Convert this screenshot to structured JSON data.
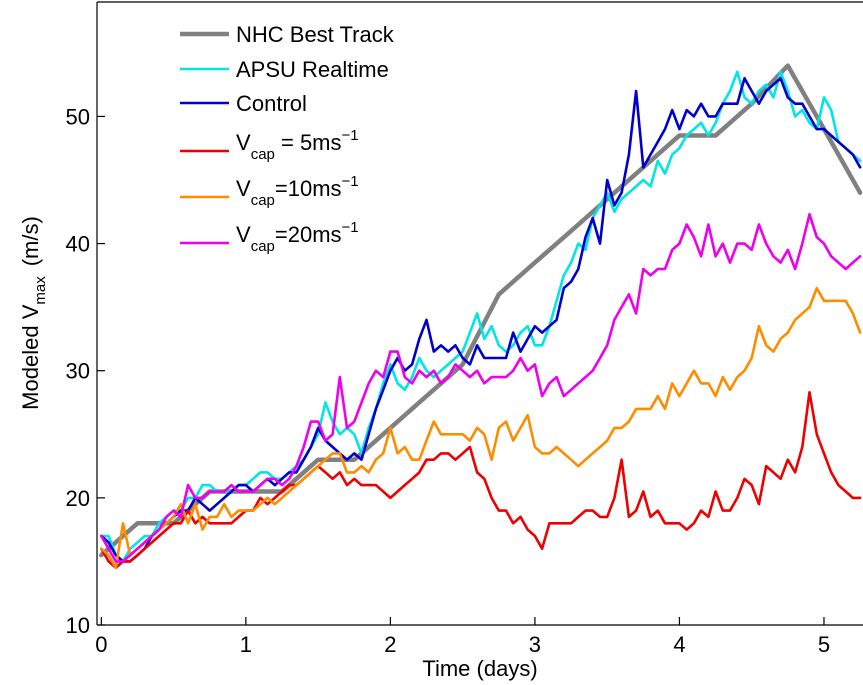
{
  "chart_data": {
    "type": "line",
    "title": "",
    "xlabel": "Time (days)",
    "ylabel": {
      "main": "Modeled V",
      "sub": "max",
      "unit": "(m/s)"
    },
    "xlim": [
      -0.03,
      5.27
    ],
    "ylim": [
      10,
      59
    ],
    "xticks": [
      0,
      1,
      2,
      3,
      4,
      5
    ],
    "xtick_labels": [
      "0",
      "1",
      "2",
      "3",
      "4",
      "5"
    ],
    "yticks": [
      10,
      20,
      30,
      40,
      50
    ],
    "ytick_labels": [
      "10",
      "20",
      "30",
      "40",
      "50"
    ],
    "grid": false,
    "legend_position": "top-left",
    "series": [
      {
        "name": "NHC Best Track",
        "color": "#808080",
        "legend": {
          "main": "NHC Best Track",
          "sub": "",
          "rest": "",
          "sup": ""
        },
        "x": [
          0.0,
          0.25,
          0.5,
          0.75,
          1.0,
          1.25,
          1.5,
          1.75,
          2.0,
          2.25,
          2.5,
          2.75,
          3.0,
          3.25,
          3.5,
          3.75,
          4.0,
          4.25,
          4.5,
          4.75,
          5.0,
          5.25
        ],
        "y": [
          15.5,
          18,
          18,
          20.5,
          20.5,
          20.5,
          23,
          23,
          25.5,
          28,
          30.5,
          36,
          38.5,
          41,
          43.5,
          46,
          48.5,
          48.5,
          51,
          54,
          49,
          44
        ]
      },
      {
        "name": "APSU Realtime",
        "color": "#00e5e5",
        "legend": {
          "main": "APSU Realtime",
          "sub": "",
          "rest": "",
          "sup": ""
        },
        "x": [
          0.0,
          0.05,
          0.1,
          0.15,
          0.2,
          0.25,
          0.3,
          0.35,
          0.4,
          0.45,
          0.5,
          0.55,
          0.6,
          0.65,
          0.7,
          0.75,
          0.8,
          0.85,
          0.9,
          0.95,
          1.0,
          1.05,
          1.1,
          1.15,
          1.2,
          1.25,
          1.3,
          1.35,
          1.4,
          1.45,
          1.5,
          1.55,
          1.6,
          1.65,
          1.7,
          1.75,
          1.8,
          1.85,
          1.9,
          1.95,
          2.0,
          2.05,
          2.1,
          2.15,
          2.2,
          2.25,
          2.3,
          2.35,
          2.4,
          2.45,
          2.5,
          2.55,
          2.6,
          2.65,
          2.7,
          2.75,
          2.8,
          2.85,
          2.9,
          2.95,
          3.0,
          3.05,
          3.1,
          3.15,
          3.2,
          3.25,
          3.3,
          3.35,
          3.4,
          3.45,
          3.5,
          3.55,
          3.6,
          3.65,
          3.7,
          3.75,
          3.8,
          3.85,
          3.9,
          3.95,
          4.0,
          4.05,
          4.1,
          4.15,
          4.2,
          4.25,
          4.3,
          4.35,
          4.4,
          4.45,
          4.5,
          4.55,
          4.6,
          4.65,
          4.7,
          4.75,
          4.8,
          4.85,
          4.9,
          4.95,
          5.0,
          5.05,
          5.1,
          5.15,
          5.2,
          5.25
        ],
        "y": [
          17,
          17,
          15.5,
          15,
          16,
          16.5,
          17,
          17,
          18,
          18.5,
          19,
          19,
          20,
          20,
          21,
          21,
          20.5,
          20.5,
          20.5,
          21,
          21,
          21.5,
          22,
          22,
          21.5,
          21.5,
          22,
          22.5,
          23,
          24,
          25,
          27.5,
          26,
          25,
          25.5,
          25,
          23.5,
          25.5,
          27,
          29,
          30.5,
          29,
          28.5,
          29.5,
          31,
          30,
          29.5,
          30,
          30.5,
          31,
          31.5,
          33,
          34.5,
          32.5,
          33.5,
          32,
          31.5,
          32,
          33,
          33.5,
          32,
          32,
          33.5,
          35.5,
          37.5,
          38.5,
          40,
          39.5,
          42,
          43,
          44,
          42.5,
          43.5,
          44,
          44.5,
          45,
          44.5,
          46.5,
          45.5,
          47,
          47.5,
          48.5,
          49,
          49.5,
          48.5,
          49.5,
          51,
          52,
          53.5,
          51.5,
          51,
          52,
          52.5,
          51.5,
          53.5,
          52,
          50,
          50.5,
          49.5,
          49,
          51.5,
          50.5,
          48,
          47.5,
          47,
          46.5
        ]
      },
      {
        "name": "Control",
        "color": "#0000cc",
        "legend": {
          "main": "Control",
          "sub": "",
          "rest": "",
          "sup": ""
        },
        "x": [
          0.0,
          0.05,
          0.1,
          0.15,
          0.2,
          0.25,
          0.3,
          0.35,
          0.4,
          0.45,
          0.5,
          0.55,
          0.6,
          0.65,
          0.7,
          0.75,
          0.8,
          0.85,
          0.9,
          0.95,
          1.0,
          1.05,
          1.1,
          1.15,
          1.2,
          1.25,
          1.3,
          1.35,
          1.4,
          1.45,
          1.5,
          1.55,
          1.6,
          1.65,
          1.7,
          1.75,
          1.8,
          1.85,
          1.9,
          1.95,
          2.0,
          2.05,
          2.1,
          2.15,
          2.2,
          2.25,
          2.3,
          2.35,
          2.4,
          2.45,
          2.5,
          2.55,
          2.6,
          2.65,
          2.7,
          2.75,
          2.8,
          2.85,
          2.9,
          2.95,
          3.0,
          3.05,
          3.1,
          3.15,
          3.2,
          3.25,
          3.3,
          3.35,
          3.4,
          3.45,
          3.5,
          3.55,
          3.6,
          3.65,
          3.7,
          3.75,
          3.8,
          3.85,
          3.9,
          3.95,
          4.0,
          4.05,
          4.1,
          4.15,
          4.2,
          4.25,
          4.3,
          4.35,
          4.4,
          4.45,
          4.5,
          4.55,
          4.6,
          4.65,
          4.7,
          4.75,
          4.8,
          4.85,
          4.9,
          4.95,
          5.0,
          5.05,
          5.1,
          5.15,
          5.2,
          5.25
        ],
        "y": [
          17,
          16.5,
          15.5,
          15,
          15,
          15.5,
          16,
          17,
          17.5,
          18,
          18.5,
          19,
          19,
          20,
          19.5,
          19,
          19.5,
          20,
          20.5,
          21,
          21,
          20.5,
          21,
          21.5,
          21,
          21.5,
          22,
          22,
          23,
          24,
          25.5,
          24.5,
          24,
          23.5,
          23,
          23.5,
          23,
          25,
          27,
          28.5,
          30,
          31,
          30,
          30.5,
          32.5,
          34,
          31.5,
          32,
          31.5,
          32,
          31,
          30.5,
          32,
          31,
          31,
          31,
          31,
          33,
          31.5,
          32.5,
          33.5,
          33,
          33.5,
          34,
          36.5,
          37,
          38,
          40.5,
          42,
          40,
          45,
          43,
          44,
          47,
          52,
          46,
          47,
          48,
          49,
          50.5,
          49,
          50.5,
          50,
          51,
          50,
          50,
          51,
          51,
          51,
          53,
          52,
          51,
          52,
          52.5,
          53,
          51.5,
          51,
          51,
          50,
          49,
          49,
          48.5,
          48,
          47.5,
          47,
          46
        ]
      },
      {
        "name": "Vcap=5ms-1",
        "color": "#ee0000",
        "legend": {
          "main": "V",
          "sub": "cap",
          "rest": " = 5ms",
          "sup": "−1"
        },
        "x": [
          0.0,
          0.05,
          0.1,
          0.15,
          0.2,
          0.25,
          0.3,
          0.35,
          0.4,
          0.45,
          0.5,
          0.55,
          0.6,
          0.65,
          0.7,
          0.75,
          0.8,
          0.85,
          0.9,
          0.95,
          1.0,
          1.05,
          1.1,
          1.15,
          1.2,
          1.25,
          1.3,
          1.35,
          1.4,
          1.45,
          1.5,
          1.55,
          1.6,
          1.65,
          1.7,
          1.75,
          1.8,
          1.85,
          1.9,
          1.95,
          2.0,
          2.05,
          2.1,
          2.15,
          2.2,
          2.25,
          2.3,
          2.35,
          2.4,
          2.45,
          2.5,
          2.55,
          2.6,
          2.65,
          2.7,
          2.75,
          2.8,
          2.85,
          2.9,
          2.95,
          3.0,
          3.05,
          3.1,
          3.15,
          3.2,
          3.25,
          3.3,
          3.35,
          3.4,
          3.45,
          3.5,
          3.55,
          3.6,
          3.65,
          3.7,
          3.75,
          3.8,
          3.85,
          3.9,
          3.95,
          4.0,
          4.05,
          4.1,
          4.15,
          4.2,
          4.25,
          4.3,
          4.35,
          4.4,
          4.45,
          4.5,
          4.55,
          4.6,
          4.65,
          4.7,
          4.75,
          4.8,
          4.85,
          4.9,
          4.95,
          5.0,
          5.05,
          5.1,
          5.15,
          5.2,
          5.25
        ],
        "y": [
          16,
          15,
          14.5,
          15,
          15,
          15.5,
          16,
          16.5,
          17,
          17.5,
          18,
          18,
          19,
          18,
          18.5,
          18,
          18,
          18,
          18,
          18.5,
          19,
          19,
          20,
          19.5,
          20,
          20.5,
          21,
          21,
          21.5,
          22,
          22.5,
          22,
          21.5,
          22,
          21,
          21.5,
          21,
          21,
          21,
          20.5,
          20,
          20.5,
          21,
          21.5,
          22,
          23,
          23,
          23.5,
          23.5,
          23,
          23.5,
          24,
          22,
          21.5,
          20,
          19,
          19,
          18,
          18.5,
          17.5,
          17,
          16,
          18,
          18,
          18,
          18,
          18.5,
          19,
          19,
          18.5,
          18.5,
          20,
          23,
          18.5,
          19,
          20.5,
          18.5,
          19,
          18,
          18,
          18,
          17.5,
          18,
          19,
          18.5,
          20.5,
          19,
          19,
          20,
          21.5,
          21,
          19.5,
          22.5,
          22,
          21.5,
          23,
          22,
          24,
          28.3,
          25,
          23.5,
          22,
          21,
          20.5,
          20,
          20
        ]
      },
      {
        "name": "Vcap=10ms-1",
        "color": "#ff8c00",
        "legend": {
          "main": "V",
          "sub": "cap",
          "rest": "=10ms",
          "sup": "−1"
        },
        "x": [
          0.0,
          0.05,
          0.1,
          0.15,
          0.2,
          0.25,
          0.3,
          0.35,
          0.4,
          0.45,
          0.5,
          0.55,
          0.6,
          0.65,
          0.7,
          0.75,
          0.8,
          0.85,
          0.9,
          0.95,
          1.0,
          1.05,
          1.1,
          1.15,
          1.2,
          1.25,
          1.3,
          1.35,
          1.4,
          1.45,
          1.5,
          1.55,
          1.6,
          1.65,
          1.7,
          1.75,
          1.8,
          1.85,
          1.9,
          1.95,
          2.0,
          2.05,
          2.1,
          2.15,
          2.2,
          2.25,
          2.3,
          2.35,
          2.4,
          2.45,
          2.5,
          2.55,
          2.6,
          2.65,
          2.7,
          2.75,
          2.8,
          2.85,
          2.9,
          2.95,
          3.0,
          3.05,
          3.1,
          3.15,
          3.2,
          3.25,
          3.3,
          3.35,
          3.4,
          3.45,
          3.5,
          3.55,
          3.6,
          3.65,
          3.7,
          3.75,
          3.8,
          3.85,
          3.9,
          3.95,
          4.0,
          4.05,
          4.1,
          4.15,
          4.2,
          4.25,
          4.3,
          4.35,
          4.4,
          4.45,
          4.5,
          4.55,
          4.6,
          4.65,
          4.7,
          4.75,
          4.8,
          4.85,
          4.9,
          4.95,
          5.0,
          5.05,
          5.1,
          5.15,
          5.2,
          5.25
        ],
        "y": [
          16,
          15.5,
          14.5,
          18,
          15.5,
          16,
          16.5,
          17,
          17.5,
          18,
          18.5,
          19.5,
          18,
          19.5,
          17.5,
          18.5,
          18.5,
          19.5,
          18.5,
          19,
          19,
          19,
          19.5,
          20,
          19.5,
          20,
          20.5,
          21,
          21.5,
          22,
          22.5,
          23,
          23.5,
          23.5,
          22,
          22,
          22.5,
          22,
          23,
          23.5,
          25.5,
          23.5,
          24,
          23,
          23,
          24.5,
          26,
          25,
          25,
          25,
          25,
          24.5,
          25.5,
          25,
          23,
          25.5,
          26,
          24.5,
          25.5,
          26.5,
          24,
          23.5,
          23.5,
          24,
          23.5,
          23,
          22.5,
          23,
          23.5,
          24,
          24.5,
          25.5,
          25.5,
          26,
          27,
          27,
          27,
          28,
          27,
          29,
          28,
          29,
          30,
          29,
          29,
          28,
          29.5,
          28.5,
          29.5,
          30,
          31,
          33.5,
          32,
          31.5,
          32.5,
          33,
          34,
          34.5,
          35,
          36.5,
          35.5,
          35.5,
          35.5,
          35.5,
          34.5,
          33
        ]
      },
      {
        "name": "Vcap=20ms-1",
        "color": "#ee00ee",
        "legend": {
          "main": "V",
          "sub": "cap",
          "rest": "=20ms",
          "sup": "−1"
        },
        "x": [
          0.0,
          0.05,
          0.1,
          0.15,
          0.2,
          0.25,
          0.3,
          0.35,
          0.4,
          0.45,
          0.5,
          0.55,
          0.6,
          0.65,
          0.7,
          0.75,
          0.8,
          0.85,
          0.9,
          0.95,
          1.0,
          1.05,
          1.1,
          1.15,
          1.2,
          1.25,
          1.3,
          1.35,
          1.4,
          1.45,
          1.5,
          1.55,
          1.6,
          1.65,
          1.7,
          1.75,
          1.8,
          1.85,
          1.9,
          1.95,
          2.0,
          2.05,
          2.1,
          2.15,
          2.2,
          2.25,
          2.3,
          2.35,
          2.4,
          2.45,
          2.5,
          2.55,
          2.6,
          2.65,
          2.7,
          2.75,
          2.8,
          2.85,
          2.9,
          2.95,
          3.0,
          3.05,
          3.1,
          3.15,
          3.2,
          3.25,
          3.3,
          3.35,
          3.4,
          3.45,
          3.5,
          3.55,
          3.6,
          3.65,
          3.7,
          3.75,
          3.8,
          3.85,
          3.9,
          3.95,
          4.0,
          4.05,
          4.1,
          4.15,
          4.2,
          4.25,
          4.3,
          4.35,
          4.4,
          4.45,
          4.5,
          4.55,
          4.6,
          4.65,
          4.7,
          4.75,
          4.8,
          4.85,
          4.9,
          4.95,
          5.0,
          5.05,
          5.1,
          5.15,
          5.2,
          5.25
        ],
        "y": [
          17,
          16,
          15,
          15,
          15.5,
          16,
          16.5,
          17,
          17.5,
          18.5,
          19,
          18.5,
          21,
          20,
          20,
          20.5,
          20.5,
          20.5,
          21,
          20.5,
          20.5,
          20.5,
          21,
          21.5,
          21.5,
          21,
          21.5,
          22.5,
          24,
          26,
          26,
          24.5,
          25,
          29.5,
          25.5,
          26,
          27.5,
          29,
          30,
          29.5,
          31.5,
          31.5,
          29.5,
          29,
          30,
          29.5,
          30,
          29,
          29.5,
          30.5,
          30,
          29.5,
          30,
          29,
          29.5,
          29.5,
          29.5,
          30,
          31,
          30,
          30.5,
          28,
          29,
          29.5,
          28,
          28.5,
          29,
          29.5,
          30,
          31,
          32,
          34,
          35,
          36,
          34.5,
          38,
          37.5,
          38,
          38,
          39.5,
          40,
          41.5,
          40.5,
          39,
          41.5,
          39,
          40,
          38.5,
          40,
          40,
          39.5,
          41.5,
          40,
          39,
          38.5,
          39.5,
          38,
          40,
          42.3,
          40.5,
          40,
          39,
          38.5,
          38,
          38.5,
          39
        ]
      }
    ]
  }
}
